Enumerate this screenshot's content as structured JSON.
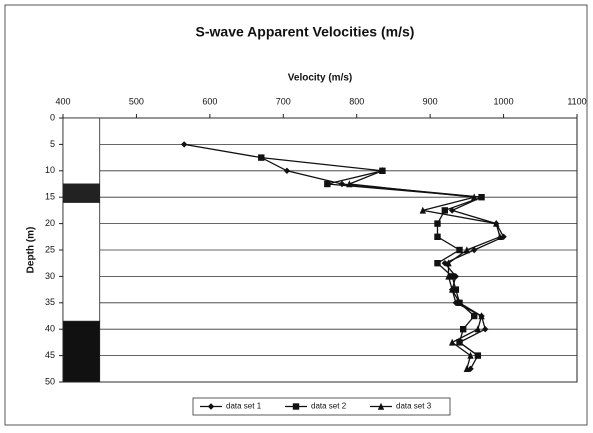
{
  "chart_data": {
    "type": "line",
    "title": "S-wave Apparent Velocities (m/s)",
    "x_label": "Velocity (m/s)",
    "y_label": "Depth (m)",
    "xlim": [
      400,
      1100
    ],
    "xticks": [
      400,
      500,
      600,
      700,
      800,
      900,
      1000,
      1100
    ],
    "ylim": [
      0,
      50
    ],
    "yticks": [
      0,
      5,
      10,
      15,
      20,
      25,
      30,
      35,
      40,
      45,
      50
    ],
    "y_inverted": true,
    "x_axis_position": "top",
    "grid": true,
    "legend": "bottom",
    "y": [
      5,
      7.5,
      10,
      12.5,
      15,
      17.5,
      20,
      22.5,
      25,
      27.5,
      30,
      32.5,
      35,
      37.5,
      40,
      42.5,
      45,
      47.5
    ],
    "series": [
      {
        "name": "data set 1",
        "color": "#111111",
        "marker": "diamond",
        "values": [
          565,
          670,
          705,
          780,
          970,
          930,
          990,
          1000,
          960,
          920,
          935,
          930,
          935,
          970,
          975,
          940,
          965,
          955
        ]
      },
      {
        "name": "data set 2",
        "color": "#111111",
        "marker": "square",
        "values": [
          null,
          670,
          835,
          760,
          970,
          920,
          910,
          910,
          940,
          910,
          930,
          935,
          940,
          960,
          945,
          940,
          965,
          null
        ]
      },
      {
        "name": "data set 3",
        "color": "#111111",
        "marker": "triangle",
        "values": [
          null,
          null,
          835,
          790,
          960,
          890,
          990,
          995,
          950,
          925,
          925,
          930,
          940,
          970,
          965,
          930,
          955,
          950
        ]
      }
    ],
    "column_xlim": [
      400,
      450
    ],
    "layers": [
      {
        "top": 0,
        "bottom": 12.5,
        "color": "#ffffff"
      },
      {
        "top": 12.5,
        "bottom": 16,
        "color": "#222222"
      },
      {
        "top": 16,
        "bottom": 38.5,
        "color": "#ffffff"
      },
      {
        "top": 38.5,
        "bottom": 50,
        "color": "#111111"
      }
    ]
  }
}
